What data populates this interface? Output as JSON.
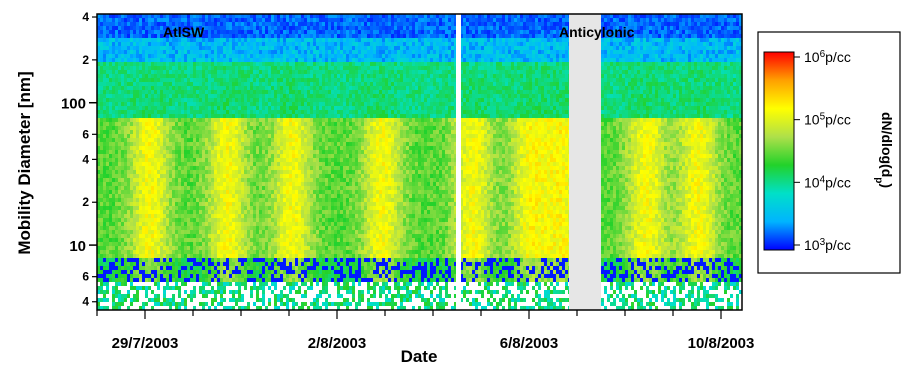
{
  "chart_data": {
    "type": "heatmap",
    "xlabel": "Date",
    "ylabel": "Mobility Diameter [nm]",
    "x_tick_labels": [
      "29/7/2003",
      "2/8/2003",
      "6/8/2003",
      "10/8/2003"
    ],
    "y_major_tick_labels": [
      "10",
      "100"
    ],
    "y_minor_tick_labels": [
      "4",
      "6",
      "2",
      "4",
      "6",
      "2",
      "4"
    ],
    "y_scale": "log",
    "ylim_nm": [
      3.5,
      420
    ],
    "period_labels": [
      "AtlSW",
      "Anticylonic"
    ],
    "colorbar": {
      "title_base": "dN/dlog(d",
      "title_sub": "p",
      "title_close": ")",
      "scale": "log",
      "range_pcc": [
        1000,
        1000000
      ],
      "ticks": [
        {
          "base": "10",
          "exp": "6",
          "unit": "p/cc"
        },
        {
          "base": "10",
          "exp": "5",
          "unit": "p/cc"
        },
        {
          "base": "10",
          "exp": "4",
          "unit": "p/cc"
        },
        {
          "base": "10",
          "exp": "3",
          "unit": "p/cc"
        }
      ],
      "colors": [
        "#0000ff",
        "#00b4ff",
        "#00e0c8",
        "#22d22a",
        "#aee04a",
        "#ffff00",
        "#ffa000",
        "#ff0000"
      ]
    },
    "data_gaps": [
      "white gap between 4/8/2003 and 5/8/2003",
      "grey gap during Anticylonic period"
    ]
  }
}
